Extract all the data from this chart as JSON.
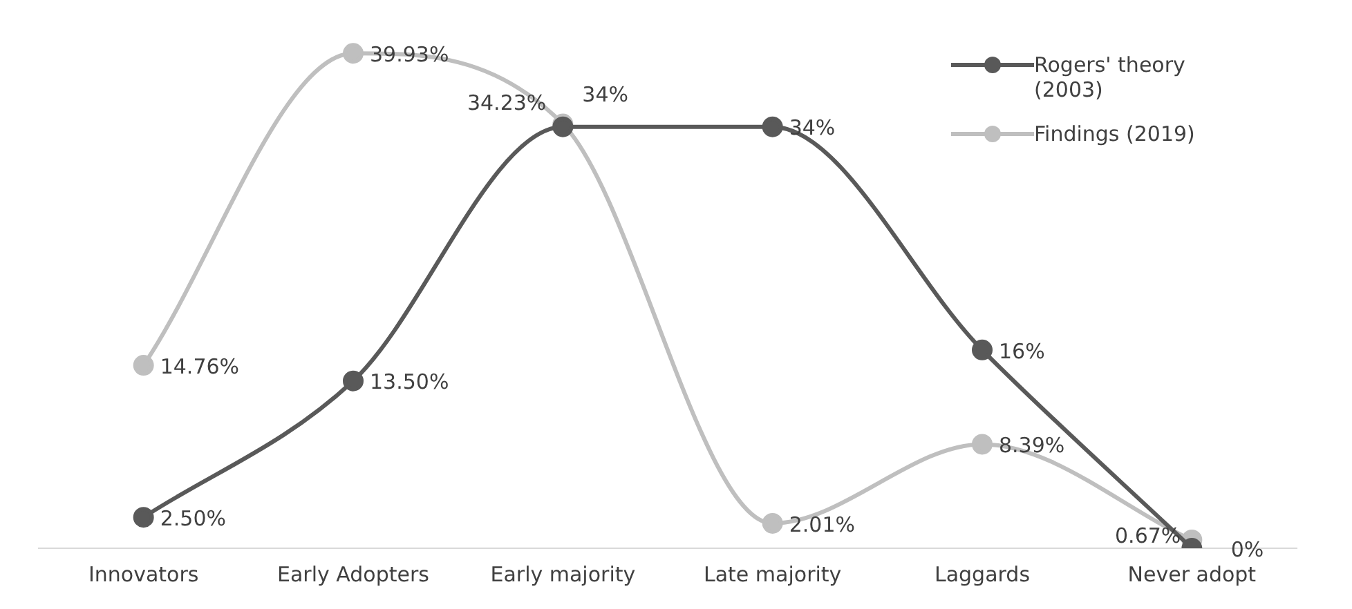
{
  "chart_data": {
    "type": "line",
    "categories": [
      "Innovators",
      "Early Adopters",
      "Early majority",
      "Late majority",
      "Laggards",
      "Never adopt"
    ],
    "series": [
      {
        "name": "Rogers' theory (2003)",
        "color": "#595959",
        "values": [
          2.5,
          13.5,
          34,
          34,
          16,
          0
        ],
        "value_labels": [
          "2.50%",
          "13.50%",
          "34%",
          "34%",
          "16%",
          "0%"
        ]
      },
      {
        "name": "Findings (2019)",
        "color": "#bfbfbf",
        "values": [
          14.76,
          39.93,
          34.23,
          2.01,
          8.39,
          0.67
        ],
        "value_labels": [
          "14.76%",
          "39.93%",
          "34.23%",
          "2.01%",
          "8.39%",
          "0.67%"
        ]
      }
    ],
    "marker": "circle",
    "line_style": "solid",
    "grid": false,
    "legend": "top right"
  }
}
